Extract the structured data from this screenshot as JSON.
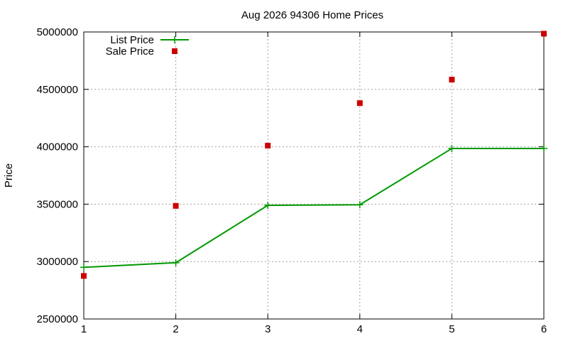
{
  "chart_data": {
    "type": "line",
    "title": "Aug 2026 94306 Home Prices",
    "xlabel": "",
    "ylabel": "Price",
    "x": [
      1,
      2,
      3,
      4,
      5,
      6
    ],
    "xlim": [
      1,
      6
    ],
    "ylim": [
      2500000,
      5000000
    ],
    "x_ticks": [
      "1",
      "2",
      "3",
      "4",
      "5",
      "6"
    ],
    "y_ticks": [
      "2500000",
      "3000000",
      "3500000",
      "4000000",
      "4500000",
      "5000000"
    ],
    "grid": true,
    "legend_position": "top-left",
    "series": [
      {
        "name": "List Price",
        "style": "linespoints",
        "color": "#009900",
        "values": [
          2950000,
          2990000,
          3490000,
          3495000,
          3985000,
          3985000
        ]
      },
      {
        "name": "Sale Price",
        "style": "points",
        "color": "#cc0000",
        "values": [
          2875000,
          3485000,
          4010000,
          4380000,
          4585000,
          4985000
        ]
      }
    ]
  }
}
